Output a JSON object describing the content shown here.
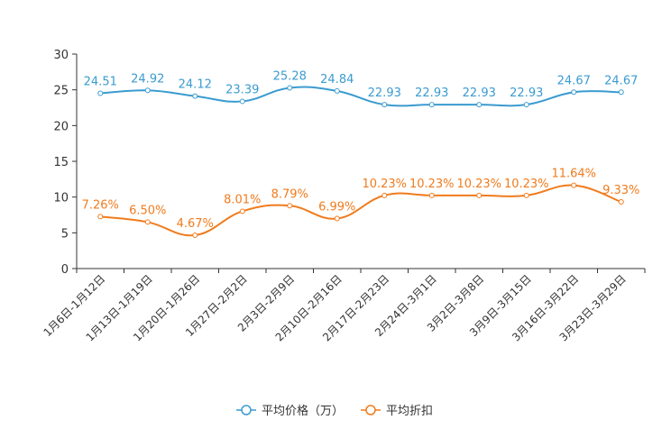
{
  "chart_data": {
    "type": "line",
    "categories": [
      "1月6日-1月12日",
      "1月13日-1月19日",
      "1月20日-1月26日",
      "1月27日-2月2日",
      "2月3日-2月9日",
      "2月10日-2月16日",
      "2月17日-2月23日",
      "2月24日-3月1日",
      "3月2日-3月8日",
      "3月9日-3月15日",
      "3月16日-3月22日",
      "3月23日-3月29日"
    ],
    "series": [
      {
        "name": "平均价格（万）",
        "color": "#3a9bd0",
        "values": [
          24.51,
          24.92,
          24.12,
          23.39,
          25.28,
          24.84,
          22.93,
          22.93,
          22.93,
          22.93,
          24.67,
          24.67
        ],
        "labels": [
          "24.51",
          "24.92",
          "24.12",
          "23.39",
          "25.28",
          "24.84",
          "22.93",
          "22.93",
          "22.93",
          "22.93",
          "24.67",
          "24.67"
        ]
      },
      {
        "name": "平均折扣",
        "color": "#f07b1d",
        "values": [
          7.26,
          6.5,
          4.67,
          8.01,
          8.79,
          6.99,
          10.23,
          10.23,
          10.23,
          10.23,
          11.64,
          9.33
        ],
        "labels": [
          "7.26%",
          "6.50%",
          "4.67%",
          "8.01%",
          "8.79%",
          "6.99%",
          "10.23%",
          "10.23%",
          "10.23%",
          "10.23%",
          "11.64%",
          "9.33%"
        ]
      }
    ],
    "yticks": [
      "0",
      "5",
      "10",
      "15",
      "20",
      "25",
      "30"
    ],
    "ylim": [
      0,
      30
    ],
    "title": "",
    "xlabel": "",
    "ylabel": "",
    "legend": "bottom-center"
  }
}
